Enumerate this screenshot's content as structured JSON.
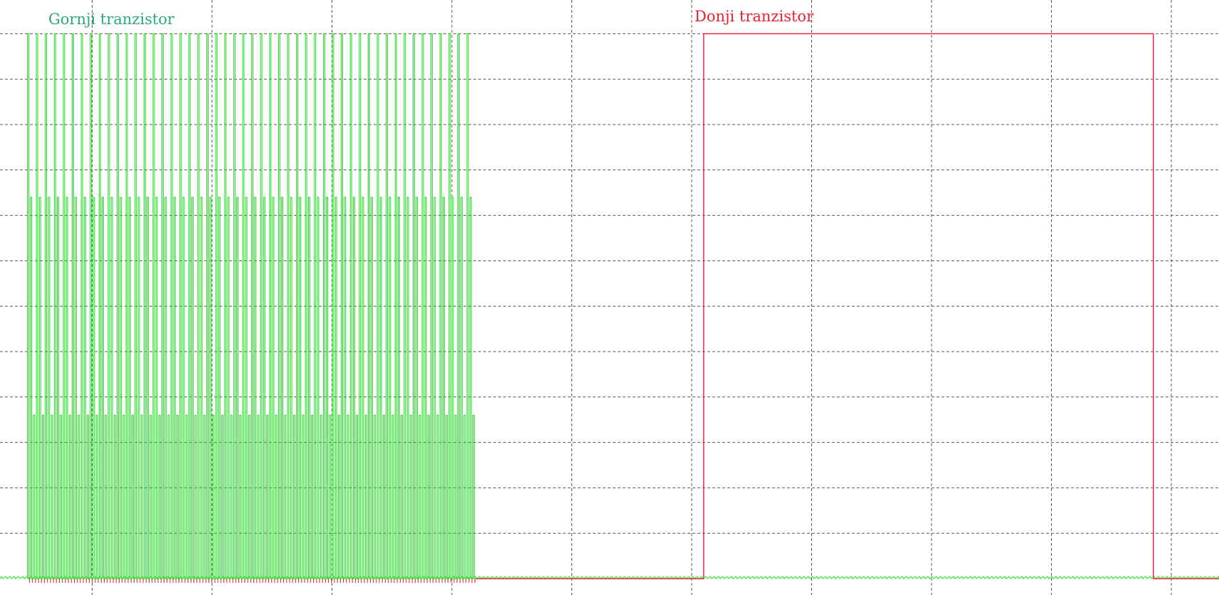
{
  "chart_data": {
    "type": "line",
    "title": "",
    "xlabel": "",
    "ylabel": "",
    "grid": true,
    "grid_style": "dashed",
    "x_divisions": 10,
    "y_divisions": 12,
    "annotations": [
      {
        "text": "Gornji tranzistor",
        "color": "#2ca779"
      },
      {
        "text": "Donji tranzistor",
        "color": "#e8202f"
      }
    ],
    "series": [
      {
        "name": "Gornji tranzistor",
        "color": "#1fdc1f",
        "signal": "pwm-burst",
        "burst_start_div": 0.46,
        "burst_end_div": 4.2,
        "pulse_count": 150,
        "high_level_div": 12,
        "mid_level_div": 8.4,
        "low_level_div": 3.6,
        "baseline_div": 0
      },
      {
        "name": "Donji tranzistor",
        "color": "#e8202f",
        "signal": "square",
        "rise_div": 6.1,
        "fall_div": 9.85,
        "high_level_div": 12,
        "baseline_div": 0
      }
    ]
  }
}
